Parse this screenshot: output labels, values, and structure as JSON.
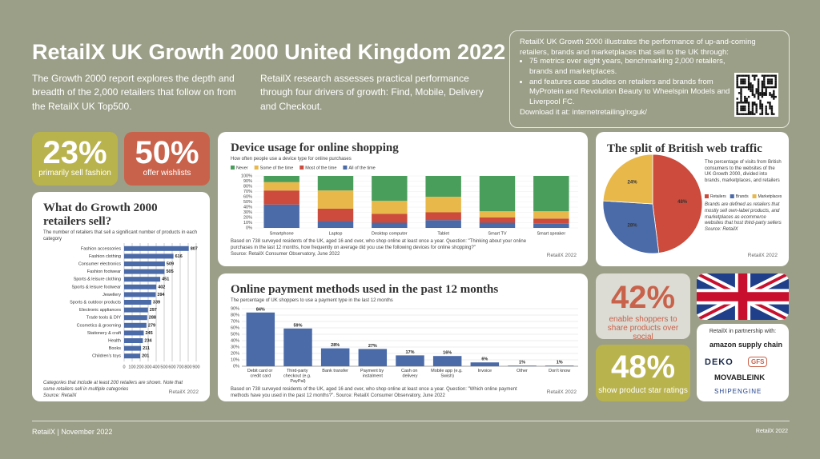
{
  "header": {
    "title": "RetailX UK Growth 2000 United Kingdom 2022",
    "intro": [
      "The Growth 2000 report explores the depth and breadth of the 2,000 retailers that follow on from the RetailX UK Top500.",
      "RetailX research assesses practical performance through four drivers of growth: Find, Mobile, Delivery and Checkout."
    ]
  },
  "about": {
    "text": "RetailX UK Growth 2000 illustrates the performance of up-and-coming retailers, brands and marketplaces that sell to the UK through:",
    "bullets": [
      "75 metrics over eight years, benchmarking 2,000 retailers, brands and marketplaces.",
      "and features case studies on retailers and brands from MyProtein and Revolution Beauty to Wheelspin Models and Liverpool FC."
    ],
    "download": "Download it at: internetretailing/rxguk/"
  },
  "stats": [
    {
      "value": "23%",
      "label": "primarily sell fashion"
    },
    {
      "value": "50%",
      "label": "offer wishlists"
    },
    {
      "value": "42%",
      "label": "enable shoppers to share products over social"
    },
    {
      "value": "48%",
      "label": "show product star ratings"
    }
  ],
  "chart_data": [
    {
      "type": "bar",
      "orientation": "horizontal",
      "title": "What do Growth 2000 retailers sell?",
      "subtitle": "The number of retailers that sell a significant number of products in each category",
      "categories": [
        "Fashion accessories",
        "Fashion clothing",
        "Consumer electronics",
        "Fashion footwear",
        "Sports & leisure clothing",
        "Sports & leisure footwear",
        "Jewellery",
        "Sports & outdoor products",
        "Electronic appliances",
        "Trade tools & DIY",
        "Cosmetics & grooming",
        "Stationery & craft",
        "Health",
        "Books",
        "Children's toys"
      ],
      "values": [
        807,
        616,
        509,
        505,
        451,
        402,
        394,
        339,
        297,
        288,
        279,
        245,
        234,
        211,
        201
      ],
      "color": "#4a6aa8",
      "xlim": [
        0,
        900
      ],
      "xticks": [
        0,
        100,
        200,
        300,
        400,
        500,
        600,
        700,
        800,
        900
      ],
      "grid": true,
      "note": "Categories that include at least 200 retailers are shown. Note that some retailers sell in multiple categories",
      "source": "Source: RetailX"
    },
    {
      "type": "bar",
      "stacked": true,
      "title": "Device usage for online shopping",
      "subtitle": "How often people use a device type for online purchases",
      "categories": [
        "Smartphone",
        "Laptop",
        "Desktop computer",
        "Tablet",
        "Smart TV",
        "Smart speaker"
      ],
      "series": [
        {
          "name": "All of the time",
          "color": "#4a6aa8",
          "values": [
            45,
            13,
            10,
            15,
            10,
            8
          ]
        },
        {
          "name": "Most of the time",
          "color": "#cc4b3c",
          "values": [
            27,
            24,
            17,
            15,
            10,
            10
          ]
        },
        {
          "name": "Some of the time",
          "color": "#e8b84a",
          "values": [
            16,
            35,
            25,
            30,
            12,
            14
          ]
        },
        {
          "name": "Never",
          "color": "#4a9e5c",
          "values": [
            12,
            28,
            48,
            40,
            68,
            68
          ]
        }
      ],
      "legend": "top-left",
      "ylim": [
        0,
        100
      ],
      "yticks": [
        {
          "value": 0,
          "label": "0%"
        },
        {
          "value": 10,
          "label": "10%"
        },
        {
          "value": 20,
          "label": "20%"
        },
        {
          "value": 30,
          "label": "30%"
        },
        {
          "value": 40,
          "label": "40%"
        },
        {
          "value": 50,
          "label": "50%"
        },
        {
          "value": 60,
          "label": "60%"
        },
        {
          "value": 70,
          "label": "70%"
        },
        {
          "value": 80,
          "label": "80%"
        },
        {
          "value": 90,
          "label": "90%"
        },
        {
          "value": 100,
          "label": "100%"
        }
      ],
      "note": "Based on 738 surveyed residents of the UK, aged 16 and over, who shop online at least once a year. Question: \"Thinking about your online purchases in the last 12 months, how frequently on average did you use the following devices for online shopping?\"",
      "source": "Source: RetailX Consumer Observatory, June 2022"
    },
    {
      "type": "pie",
      "title": "The split of British web traffic",
      "subtitle": "The percentage of visits from British consumers to the websites of the UK Growth 2000, divided into brands, marketplaces, and retailers",
      "categories": [
        "Retailers",
        "Brands",
        "Marketplaces"
      ],
      "values": [
        48,
        28,
        24
      ],
      "value_labels": [
        "48%",
        "28%",
        "24%"
      ],
      "colors": [
        "#cc4b3c",
        "#4a6aa8",
        "#e8b84a"
      ],
      "note": "Brands are defined as retailers that mostly sell own-label products, and marketplaces as ecommerce websites that host third-party sellers",
      "source": "Source: RetailX"
    },
    {
      "type": "bar",
      "title": "Online payment methods used in the past 12 months",
      "subtitle": "The percentage of UK shoppers to use a payment type in the last 12 months",
      "categories": [
        "Debit card or credit card",
        "Third-party checkout (e.g. PayPal)",
        "Bank transfer",
        "Payment by instalment",
        "Cash on delivery",
        "Mobile app (e.g. Swish)",
        "Invoice",
        "Other",
        "Don't know"
      ],
      "values": [
        84,
        59,
        28,
        27,
        17,
        16,
        6,
        1,
        1
      ],
      "value_labels": [
        "84%",
        "59%",
        "28%",
        "27%",
        "17%",
        "16%",
        "6%",
        "1%",
        "1%"
      ],
      "color": "#4a6aa8",
      "grid": true,
      "ylim": [
        0,
        90
      ],
      "yticks": [
        {
          "value": 0,
          "label": "0%"
        },
        {
          "value": 10,
          "label": "10%"
        },
        {
          "value": 20,
          "label": "20%"
        },
        {
          "value": 30,
          "label": "30%"
        },
        {
          "value": 40,
          "label": "40%"
        },
        {
          "value": 50,
          "label": "50%"
        },
        {
          "value": 60,
          "label": "60%"
        },
        {
          "value": 70,
          "label": "70%"
        },
        {
          "value": 80,
          "label": "80%"
        },
        {
          "value": 90,
          "label": "90%"
        }
      ],
      "note": "Based on 738 surveyed residents of the UK, aged 16 and over, who shop online at least once a year. Question: \"Which online payment methods have you used in the past 12 months?\". Source: RetailX Consumer Observatory, June 2022"
    }
  ],
  "partners": {
    "title": "RetailX in partnership with:",
    "logos": [
      "amazon supply chain",
      "DEKO",
      "GFS",
      "MOVABLEINK",
      "SHIPENGINE"
    ]
  },
  "credit": "RetailX 2022",
  "footer": "RetailX | November 2022"
}
